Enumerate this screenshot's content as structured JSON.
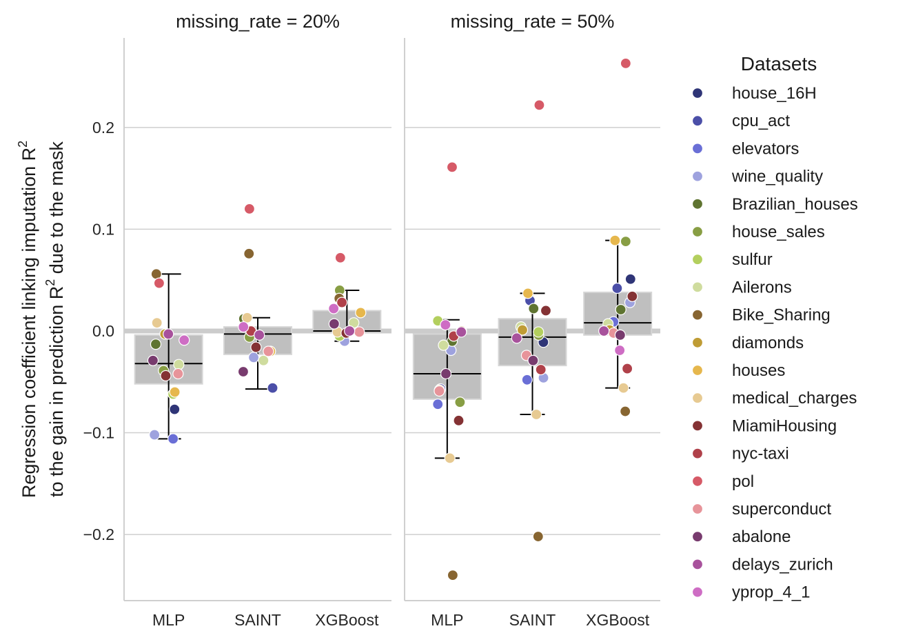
{
  "chart_data": {
    "type": "bar",
    "ylabel_line1": "Regression coefficient linking imputation R",
    "ylabel_line1_sup": "2",
    "ylabel_line2_pre": "to the gain in prediction R",
    "ylabel_line2_sup": "2",
    "ylabel_line2_post": " due to the mask",
    "ylim": [
      -0.265,
      0.288
    ],
    "yticks": [
      0.2,
      0.1,
      0.0,
      -0.1,
      -0.2
    ],
    "ytick_labels": [
      "0.2",
      "0.1",
      "0.0",
      "−0.1",
      "−0.2"
    ],
    "categories": [
      "MLP",
      "SAINT",
      "XGBoost"
    ],
    "legend": {
      "title": "Datasets",
      "position": "right",
      "items": [
        {
          "name": "house_16H",
          "color": "#2f3577"
        },
        {
          "name": "cpu_act",
          "color": "#4b4fa8"
        },
        {
          "name": "elevators",
          "color": "#6a6fd6"
        },
        {
          "name": "wine_quality",
          "color": "#9ea2de"
        },
        {
          "name": "Brazilian_houses",
          "color": "#5f7431"
        },
        {
          "name": "house_sales",
          "color": "#889e44"
        },
        {
          "name": "sulfur",
          "color": "#b3cf5e"
        },
        {
          "name": "Ailerons",
          "color": "#cfdc9e"
        },
        {
          "name": "Bike_Sharing",
          "color": "#876531"
        },
        {
          "name": "diamonds",
          "color": "#bf9c35"
        },
        {
          "name": "houses",
          "color": "#e6b74d"
        },
        {
          "name": "medical_charges",
          "color": "#e7ca92"
        },
        {
          "name": "MiamiHousing",
          "color": "#843234"
        },
        {
          "name": "nyc-taxi",
          "color": "#b0414a"
        },
        {
          "name": "pol",
          "color": "#d65a67"
        },
        {
          "name": "superconduct",
          "color": "#e7949a"
        },
        {
          "name": "abalone",
          "color": "#783b6e"
        },
        {
          "name": "delays_zurich",
          "color": "#a8529c"
        },
        {
          "name": "yprop_4_1",
          "color": "#ce6dc4"
        }
      ]
    },
    "panels": [
      {
        "title": "missing_rate = 20%",
        "bars": [
          {
            "category": "MLP",
            "mean": -0.032,
            "bar_low": -0.052,
            "bar_high": -0.004,
            "ci_low": -0.106,
            "ci_high": 0.056
          },
          {
            "category": "SAINT",
            "mean": -0.003,
            "bar_low": -0.023,
            "bar_high": 0.004,
            "ci_low": -0.057,
            "ci_high": 0.013
          },
          {
            "category": "XGBoost",
            "mean": 0.0,
            "bar_low": 0.0,
            "bar_high": 0.02,
            "ci_low": -0.01,
            "ci_high": 0.04
          }
        ],
        "points": [
          {
            "category": "MLP",
            "dataset": "house_16H",
            "value": -0.077
          },
          {
            "category": "MLP",
            "dataset": "elevators",
            "value": -0.106
          },
          {
            "category": "MLP",
            "dataset": "wine_quality",
            "value": -0.102
          },
          {
            "category": "MLP",
            "dataset": "Brazilian_houses",
            "value": -0.013
          },
          {
            "category": "MLP",
            "dataset": "house_sales",
            "value": -0.039
          },
          {
            "category": "MLP",
            "dataset": "sulfur",
            "value": -0.062
          },
          {
            "category": "MLP",
            "dataset": "Ailerons",
            "value": -0.033
          },
          {
            "category": "MLP",
            "dataset": "Bike_Sharing",
            "value": 0.056
          },
          {
            "category": "MLP",
            "dataset": "diamonds",
            "value": -0.003
          },
          {
            "category": "MLP",
            "dataset": "houses",
            "value": -0.06
          },
          {
            "category": "MLP",
            "dataset": "medical_charges",
            "value": 0.008
          },
          {
            "category": "MLP",
            "dataset": "MiamiHousing",
            "value": -0.044
          },
          {
            "category": "MLP",
            "dataset": "pol",
            "value": 0.047
          },
          {
            "category": "MLP",
            "dataset": "superconduct",
            "value": -0.042
          },
          {
            "category": "MLP",
            "dataset": "abalone",
            "value": -0.029
          },
          {
            "category": "MLP",
            "dataset": "delays_zurich",
            "value": -0.003
          },
          {
            "category": "MLP",
            "dataset": "yprop_4_1",
            "value": -0.009
          },
          {
            "category": "SAINT",
            "dataset": "cpu_act",
            "value": -0.056
          },
          {
            "category": "SAINT",
            "dataset": "wine_quality",
            "value": -0.026
          },
          {
            "category": "SAINT",
            "dataset": "Brazilian_houses",
            "value": 0.012
          },
          {
            "category": "SAINT",
            "dataset": "house_sales",
            "value": -0.006
          },
          {
            "category": "SAINT",
            "dataset": "Ailerons",
            "value": -0.029
          },
          {
            "category": "SAINT",
            "dataset": "Bike_Sharing",
            "value": 0.076
          },
          {
            "category": "SAINT",
            "dataset": "houses",
            "value": -0.02
          },
          {
            "category": "SAINT",
            "dataset": "medical_charges",
            "value": 0.013
          },
          {
            "category": "SAINT",
            "dataset": "MiamiHousing",
            "value": -0.016
          },
          {
            "category": "SAINT",
            "dataset": "nyc-taxi",
            "value": 0.0
          },
          {
            "category": "SAINT",
            "dataset": "pol",
            "value": 0.12
          },
          {
            "category": "SAINT",
            "dataset": "superconduct",
            "value": -0.02
          },
          {
            "category": "SAINT",
            "dataset": "abalone",
            "value": -0.04
          },
          {
            "category": "SAINT",
            "dataset": "delays_zurich",
            "value": -0.004
          },
          {
            "category": "SAINT",
            "dataset": "yprop_4_1",
            "value": 0.004
          },
          {
            "category": "XGBoost",
            "dataset": "wine_quality",
            "value": -0.01
          },
          {
            "category": "XGBoost",
            "dataset": "house_sales",
            "value": 0.04
          },
          {
            "category": "XGBoost",
            "dataset": "sulfur",
            "value": -0.005
          },
          {
            "category": "XGBoost",
            "dataset": "Ailerons",
            "value": 0.008
          },
          {
            "category": "XGBoost",
            "dataset": "Bike_Sharing",
            "value": 0.032
          },
          {
            "category": "XGBoost",
            "dataset": "houses",
            "value": 0.018
          },
          {
            "category": "XGBoost",
            "dataset": "medical_charges",
            "value": -0.001
          },
          {
            "category": "XGBoost",
            "dataset": "MiamiHousing",
            "value": -0.002
          },
          {
            "category": "XGBoost",
            "dataset": "nyc-taxi",
            "value": 0.028
          },
          {
            "category": "XGBoost",
            "dataset": "pol",
            "value": 0.072
          },
          {
            "category": "XGBoost",
            "dataset": "superconduct",
            "value": -0.001
          },
          {
            "category": "XGBoost",
            "dataset": "abalone",
            "value": 0.007
          },
          {
            "category": "XGBoost",
            "dataset": "delays_zurich",
            "value": 0.0
          },
          {
            "category": "XGBoost",
            "dataset": "yprop_4_1",
            "value": 0.022
          }
        ]
      },
      {
        "title": "missing_rate = 50%",
        "bars": [
          {
            "category": "MLP",
            "mean": -0.042,
            "bar_low": -0.067,
            "bar_high": -0.003,
            "ci_low": -0.125,
            "ci_high": 0.011
          },
          {
            "category": "SAINT",
            "mean": -0.006,
            "bar_low": -0.034,
            "bar_high": 0.012,
            "ci_low": -0.082,
            "ci_high": 0.037
          },
          {
            "category": "XGBoost",
            "mean": 0.008,
            "bar_low": -0.004,
            "bar_high": 0.038,
            "ci_low": -0.056,
            "ci_high": 0.089
          }
        ],
        "points": [
          {
            "category": "MLP",
            "dataset": "cpu_act",
            "value": -0.057
          },
          {
            "category": "MLP",
            "dataset": "elevators",
            "value": -0.072
          },
          {
            "category": "MLP",
            "dataset": "wine_quality",
            "value": -0.019
          },
          {
            "category": "MLP",
            "dataset": "Brazilian_houses",
            "value": -0.01
          },
          {
            "category": "MLP",
            "dataset": "house_sales",
            "value": -0.07
          },
          {
            "category": "MLP",
            "dataset": "sulfur",
            "value": 0.01
          },
          {
            "category": "MLP",
            "dataset": "Ailerons",
            "value": -0.014
          },
          {
            "category": "MLP",
            "dataset": "Bike_Sharing",
            "value": -0.24
          },
          {
            "category": "MLP",
            "dataset": "diamonds",
            "value": 0.0
          },
          {
            "category": "MLP",
            "dataset": "houses",
            "value": -0.058
          },
          {
            "category": "MLP",
            "dataset": "medical_charges",
            "value": -0.125
          },
          {
            "category": "MLP",
            "dataset": "MiamiHousing",
            "value": -0.088
          },
          {
            "category": "MLP",
            "dataset": "nyc-taxi",
            "value": -0.005
          },
          {
            "category": "MLP",
            "dataset": "pol",
            "value": 0.161
          },
          {
            "category": "MLP",
            "dataset": "superconduct",
            "value": -0.059
          },
          {
            "category": "MLP",
            "dataset": "abalone",
            "value": -0.042
          },
          {
            "category": "MLP",
            "dataset": "delays_zurich",
            "value": -0.001
          },
          {
            "category": "MLP",
            "dataset": "yprop_4_1",
            "value": 0.006
          },
          {
            "category": "SAINT",
            "dataset": "house_16H",
            "value": -0.011
          },
          {
            "category": "SAINT",
            "dataset": "cpu_act",
            "value": 0.03
          },
          {
            "category": "SAINT",
            "dataset": "elevators",
            "value": -0.048
          },
          {
            "category": "SAINT",
            "dataset": "wine_quality",
            "value": -0.046
          },
          {
            "category": "SAINT",
            "dataset": "Brazilian_houses",
            "value": 0.022
          },
          {
            "category": "SAINT",
            "dataset": "house_sales",
            "value": -0.004
          },
          {
            "category": "SAINT",
            "dataset": "sulfur",
            "value": -0.001
          },
          {
            "category": "SAINT",
            "dataset": "Ailerons",
            "value": 0.004
          },
          {
            "category": "SAINT",
            "dataset": "Bike_Sharing",
            "value": -0.202
          },
          {
            "category": "SAINT",
            "dataset": "diamonds",
            "value": 0.001
          },
          {
            "category": "SAINT",
            "dataset": "houses",
            "value": 0.037
          },
          {
            "category": "SAINT",
            "dataset": "medical_charges",
            "value": -0.082
          },
          {
            "category": "SAINT",
            "dataset": "MiamiHousing",
            "value": 0.02
          },
          {
            "category": "SAINT",
            "dataset": "nyc-taxi",
            "value": -0.038
          },
          {
            "category": "SAINT",
            "dataset": "pol",
            "value": 0.222
          },
          {
            "category": "SAINT",
            "dataset": "superconduct",
            "value": -0.024
          },
          {
            "category": "SAINT",
            "dataset": "abalone",
            "value": -0.029
          },
          {
            "category": "SAINT",
            "dataset": "delays_zurich",
            "value": -0.007
          },
          {
            "category": "XGBoost",
            "dataset": "house_16H",
            "value": 0.051
          },
          {
            "category": "XGBoost",
            "dataset": "cpu_act",
            "value": 0.042
          },
          {
            "category": "XGBoost",
            "dataset": "elevators",
            "value": 0.009
          },
          {
            "category": "XGBoost",
            "dataset": "wine_quality",
            "value": 0.028
          },
          {
            "category": "XGBoost",
            "dataset": "Brazilian_houses",
            "value": 0.021
          },
          {
            "category": "XGBoost",
            "dataset": "house_sales",
            "value": 0.088
          },
          {
            "category": "XGBoost",
            "dataset": "Ailerons",
            "value": 0.007
          },
          {
            "category": "XGBoost",
            "dataset": "Bike_Sharing",
            "value": -0.079
          },
          {
            "category": "XGBoost",
            "dataset": "diamonds",
            "value": 0.001
          },
          {
            "category": "XGBoost",
            "dataset": "houses",
            "value": 0.089
          },
          {
            "category": "XGBoost",
            "dataset": "medical_charges",
            "value": -0.056
          },
          {
            "category": "XGBoost",
            "dataset": "MiamiHousing",
            "value": 0.034
          },
          {
            "category": "XGBoost",
            "dataset": "nyc-taxi",
            "value": -0.037
          },
          {
            "category": "XGBoost",
            "dataset": "pol",
            "value": 0.263
          },
          {
            "category": "XGBoost",
            "dataset": "superconduct",
            "value": -0.002
          },
          {
            "category": "XGBoost",
            "dataset": "abalone",
            "value": -0.004
          },
          {
            "category": "XGBoost",
            "dataset": "delays_zurich",
            "value": 0.0
          },
          {
            "category": "XGBoost",
            "dataset": "yprop_4_1",
            "value": -0.019
          }
        ]
      }
    ]
  }
}
